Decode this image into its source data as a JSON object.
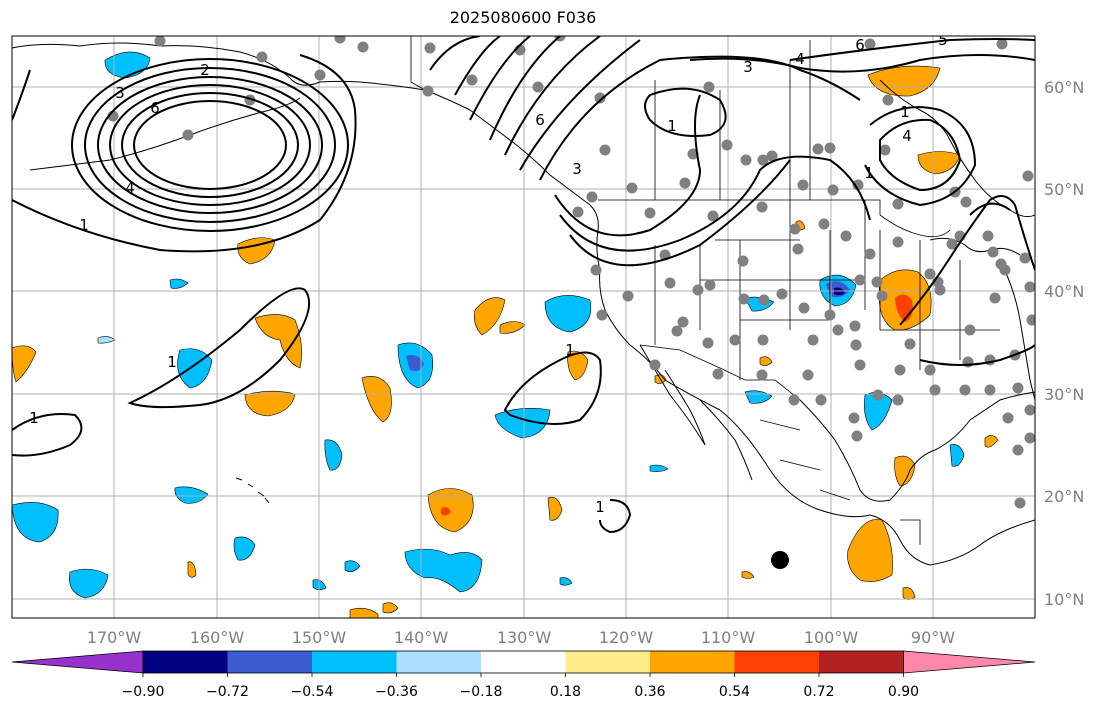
{
  "title": "2025080600 F036",
  "lon_labels": [
    "170°W",
    "160°W",
    "150°W",
    "140°W",
    "130°W",
    "120°W",
    "110°W",
    "100°W",
    "90°W"
  ],
  "lat_labels": [
    "60°N",
    "50°N",
    "40°N",
    "30°N",
    "20°N",
    "10°N"
  ],
  "colorbar": {
    "tick_labels": [
      "−0.90",
      "−0.72",
      "−0.54",
      "−0.36",
      "−0.18",
      "0.18",
      "0.36",
      "0.54",
      "0.72",
      "0.90"
    ],
    "colors": [
      "#9932CC",
      "#000080",
      "#3A5BD0",
      "#00BFFF",
      "#ADDFFF",
      "#FFFFFF",
      "#FFEB8A",
      "#FFA500",
      "#FF4000",
      "#B22222",
      "#FF88AA"
    ]
  },
  "contour_labels": [
    "1",
    "2",
    "3",
    "4",
    "6",
    "1",
    "6",
    "1",
    "3",
    "4",
    "6",
    "5",
    "1",
    "1",
    "1",
    "1",
    "1",
    "4",
    "3"
  ],
  "colors": {
    "grid": "#b0b0b0",
    "contour": "#000000",
    "station": "#808080",
    "coast": "#000000"
  }
}
